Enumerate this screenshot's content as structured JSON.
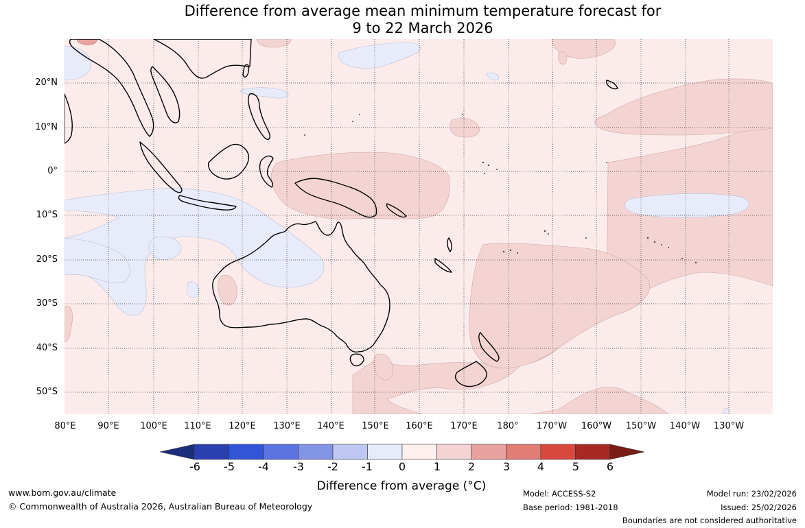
{
  "title": {
    "line1": "Difference from average mean minimum temperature forecast for",
    "line2": "9 to 22 March 2026"
  },
  "map": {
    "lat_labels": [
      "20°N",
      "10°N",
      "0°",
      "10°S",
      "20°S",
      "30°S",
      "40°S",
      "50°S"
    ],
    "lon_labels": [
      "80°E",
      "90°E",
      "100°E",
      "110°E",
      "120°E",
      "130°E",
      "140°E",
      "150°E",
      "160°E",
      "170°E",
      "180°",
      "170°W",
      "160°W",
      "150°W",
      "140°W",
      "130°W"
    ],
    "colors": {
      "background_0_to_1": "#fbeceb",
      "band_1_to_2": "#f4d4d2",
      "band_minus1_to_0": "#e8ebfa",
      "band_2_to_3": "#e8a39e",
      "coastline": "#000000"
    }
  },
  "colorbar": {
    "ticks": [
      "-6",
      "-5",
      "-4",
      "-3",
      "-2",
      "-1",
      "0",
      "1",
      "2",
      "3",
      "4",
      "5",
      "6"
    ],
    "colors": [
      "#1c2f7c",
      "#2a40b0",
      "#3255d8",
      "#5b74e0",
      "#8294e6",
      "#bfc8f2",
      "#e8ebfa",
      "#fdf0ef",
      "#f4d4d2",
      "#e8a39e",
      "#e07d75",
      "#d9483d",
      "#a62a23",
      "#7a1d16"
    ],
    "label": "Difference from average (°C)"
  },
  "footer": {
    "website": "www.bom.gov.au/climate",
    "copyright": "© Commonwealth of Australia 2026, Australian Bureau of Meteorology",
    "model": "Model: ACCESS-S2",
    "base_period": "Base period: 1981-2018",
    "model_run": "Model run: 23/02/2026",
    "issued": "Issued: 25/02/2026",
    "disclaimer": "Boundaries are not considered authoritative"
  }
}
